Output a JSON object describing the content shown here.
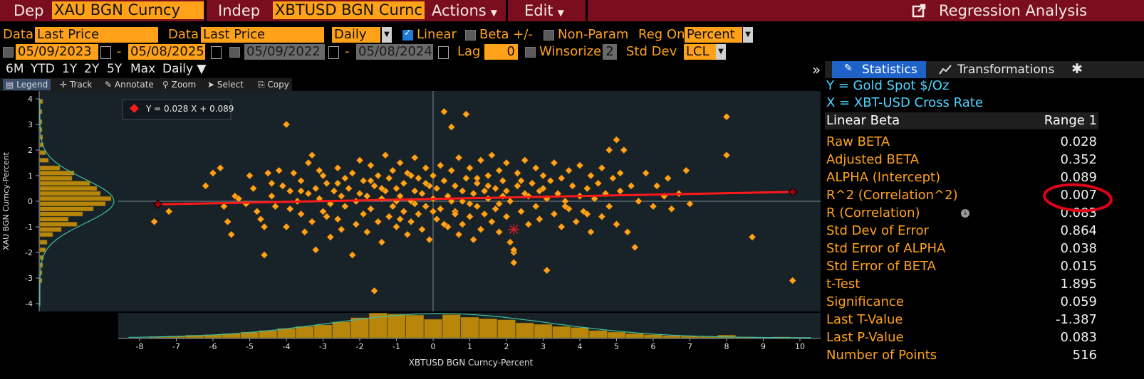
{
  "topbar": {
    "dep_label": "Dep",
    "dep_value": "XAU BGN Curncy",
    "indep_label": "Indep",
    "indep_value": "XBTUSD BGN Curnc",
    "actions_label": "Actions",
    "edit_label": "Edit",
    "app_title": "Regression Analysis",
    "colors": {
      "bar": "#7a0e1e",
      "field": "#ffa21a"
    }
  },
  "row1": {
    "data_label_1": "Data",
    "data_value_1": "Last Price",
    "data_label_2": "Data",
    "data_value_2": "Last Price",
    "frequency": "Daily",
    "linear_label": "Linear",
    "linear_checked": true,
    "beta_label": "Beta +/-",
    "beta_checked": false,
    "nonparam_label": "Non-Param",
    "nonparam_checked": false,
    "regon_label": "Reg On",
    "regon_value": "Percent"
  },
  "row2": {
    "range1_start": "05/09/2023",
    "range1_end": "05/08/2025",
    "range_sep": "-",
    "range2_start": "05/09/2022",
    "range2_end": "05/08/2024",
    "lag_label": "Lag",
    "lag_value": "0",
    "winsorize_label": "Winsorize",
    "winsorize_value": "2",
    "stddev_label": "Std Dev",
    "stddev_value": "LCL"
  },
  "periods": [
    "6M",
    "YTD",
    "1Y",
    "2Y",
    "5Y",
    "Max",
    "Daily ▼"
  ],
  "toolbar": {
    "legend": "Legend",
    "track": "Track",
    "annotate": "Annotate",
    "zoom": "Zoom",
    "select": "Select",
    "copy": "Copy"
  },
  "panel": {
    "collapse": "»",
    "tab_statistics": "Statistics",
    "tab_transformations": "Transformations",
    "y_line": "Y = Gold Spot   $/Oz",
    "x_line": "X = XBT-USD Cross Rate",
    "header_left": "Linear Beta",
    "header_right": "Range 1",
    "stats": [
      {
        "label": "Raw BETA",
        "value": "0.028"
      },
      {
        "label": "Adjusted BETA",
        "value": "0.352"
      },
      {
        "label": "ALPHA (Intercept)",
        "value": "0.089"
      },
      {
        "label": "R^2 (Correlation^2)",
        "value": "0.007"
      },
      {
        "label": "R (Correlation)",
        "value": "0.083"
      },
      {
        "label": "Std Dev of Error",
        "value": "0.864"
      },
      {
        "label": "Std Error of ALPHA",
        "value": "0.038"
      },
      {
        "label": "Std Error of BETA",
        "value": "0.015"
      },
      {
        "label": "t-Test",
        "value": "1.895"
      },
      {
        "label": "Significance",
        "value": "0.059"
      },
      {
        "label": "Last T-Value",
        "value": "-1.387"
      },
      {
        "label": "Last P-Value",
        "value": "0.083"
      },
      {
        "label": "Number of Points",
        "value": "516"
      }
    ]
  },
  "chart_data": {
    "type": "scatter",
    "equation": "Y = 0.028 X + 0.089",
    "xlabel": "XBTUSD BGN Curncy-Percent",
    "ylabel": "XAU BGN Curncy-Percent",
    "xlim": [
      -8.5,
      10.5
    ],
    "ylim": [
      -4.2,
      4.2
    ],
    "x_ticks": [
      -8,
      -7,
      -6,
      -5,
      -4,
      -3,
      -2,
      -1,
      0,
      1,
      2,
      3,
      4,
      5,
      6,
      7,
      8,
      9,
      10
    ],
    "y_ticks": [
      4,
      3,
      2,
      1,
      0,
      -1,
      -2,
      -3,
      -4
    ],
    "regression": {
      "slope": 0.028,
      "intercept": 0.089,
      "x_range": [
        -7.5,
        9.8
      ]
    },
    "last_point": {
      "x": 2.2,
      "y": -1.1
    },
    "points_count": 516,
    "colors": {
      "points": "#ffa21a",
      "line": "#ff1a1a",
      "background": "#172229",
      "hist": "#b8860b",
      "curve": "#3fbfa0",
      "annotation": "#e0001a"
    },
    "points": [
      [
        -7.6,
        -0.8
      ],
      [
        -7.2,
        -0.4
      ],
      [
        -6.2,
        0.6
      ],
      [
        -6.0,
        1.1
      ],
      [
        -5.8,
        1.3
      ],
      [
        -5.7,
        -0.2
      ],
      [
        -5.6,
        -0.8
      ],
      [
        -5.5,
        -1.3
      ],
      [
        -5.4,
        0.2
      ],
      [
        -5.3,
        0.1
      ],
      [
        -5.1,
        -0.1
      ],
      [
        -5.0,
        1.0
      ],
      [
        -4.9,
        0.5
      ],
      [
        -4.8,
        -0.4
      ],
      [
        -4.7,
        -0.7
      ],
      [
        -4.6,
        -2.1
      ],
      [
        -4.6,
        -1.0
      ],
      [
        -4.5,
        1.1
      ],
      [
        -4.4,
        0.2
      ],
      [
        -4.3,
        -0.2
      ],
      [
        -4.2,
        1.2
      ],
      [
        -4.1,
        0.6
      ],
      [
        -4.0,
        3.0
      ],
      [
        -4.0,
        -1.0
      ],
      [
        -3.9,
        -0.3
      ],
      [
        -3.9,
        0.4
      ],
      [
        -3.8,
        1.1
      ],
      [
        -3.7,
        0.0
      ],
      [
        -3.6,
        -0.5
      ],
      [
        -3.6,
        0.8
      ],
      [
        -3.5,
        -1.2
      ],
      [
        -3.4,
        0.3
      ],
      [
        -3.4,
        1.5
      ],
      [
        -3.3,
        -0.8
      ],
      [
        -3.3,
        1.8
      ],
      [
        -3.2,
        0.5
      ],
      [
        -3.2,
        -1.9
      ],
      [
        -3.1,
        0.1
      ],
      [
        -3.0,
        -0.4
      ],
      [
        -3.0,
        1.0
      ],
      [
        -2.9,
        0.7
      ],
      [
        -2.8,
        -0.1
      ],
      [
        -2.8,
        -1.4
      ],
      [
        -2.7,
        0.4
      ],
      [
        -2.6,
        1.3
      ],
      [
        -2.6,
        -0.7
      ],
      [
        -2.5,
        0.2
      ],
      [
        -2.5,
        -1.1
      ],
      [
        -2.4,
        0.9
      ],
      [
        -2.4,
        -0.2
      ],
      [
        -2.3,
        0.5
      ],
      [
        -2.2,
        -2.1
      ],
      [
        -2.2,
        1.1
      ],
      [
        -2.1,
        0.0
      ],
      [
        -2.1,
        -0.9
      ],
      [
        -2.0,
        1.6
      ],
      [
        -2.0,
        0.3
      ],
      [
        -1.9,
        -0.5
      ],
      [
        -1.9,
        0.8
      ],
      [
        -1.8,
        -1.2
      ],
      [
        -1.8,
        0.2
      ],
      [
        -1.7,
        1.4
      ],
      [
        -1.7,
        -0.3
      ],
      [
        -1.6,
        0.6
      ],
      [
        -1.6,
        -3.5
      ],
      [
        -1.5,
        -0.8
      ],
      [
        -1.5,
        1.0
      ],
      [
        -1.4,
        0.1
      ],
      [
        -1.4,
        -1.6
      ],
      [
        -1.3,
        0.4
      ],
      [
        -1.3,
        1.8
      ],
      [
        -1.2,
        -0.6
      ],
      [
        -1.2,
        0.9
      ],
      [
        -1.1,
        -0.2
      ],
      [
        -1.1,
        1.2
      ],
      [
        -1.0,
        0.5
      ],
      [
        -1.0,
        -1.0
      ],
      [
        -0.9,
        0.2
      ],
      [
        -0.9,
        1.5
      ],
      [
        -0.8,
        -0.4
      ],
      [
        -0.8,
        0.7
      ],
      [
        -0.7,
        -1.3
      ],
      [
        -0.7,
        1.1
      ],
      [
        -0.6,
        0.0
      ],
      [
        -0.6,
        -0.8
      ],
      [
        -0.5,
        1.7
      ],
      [
        -0.5,
        0.4
      ],
      [
        -0.4,
        -0.5
      ],
      [
        -0.4,
        0.9
      ],
      [
        -0.3,
        -1.1
      ],
      [
        -0.3,
        0.3
      ],
      [
        -0.2,
        1.3
      ],
      [
        -0.2,
        -0.2
      ],
      [
        -0.1,
        0.6
      ],
      [
        -0.1,
        -1.5
      ],
      [
        0.0,
        0.1
      ],
      [
        0.0,
        1.0
      ],
      [
        0.1,
        -0.7
      ],
      [
        0.1,
        0.5
      ],
      [
        0.2,
        1.4
      ],
      [
        0.2,
        -0.3
      ],
      [
        0.3,
        3.5
      ],
      [
        0.3,
        0.8
      ],
      [
        0.4,
        -1.0
      ],
      [
        0.4,
        0.2
      ],
      [
        0.5,
        2.9
      ],
      [
        0.5,
        1.2
      ],
      [
        0.6,
        -0.4
      ],
      [
        0.6,
        0.6
      ],
      [
        0.7,
        -1.3
      ],
      [
        0.7,
        1.7
      ],
      [
        0.8,
        0.0
      ],
      [
        0.8,
        -0.9
      ],
      [
        0.9,
        3.4
      ],
      [
        0.9,
        0.9
      ],
      [
        1.0,
        -0.6
      ],
      [
        1.0,
        1.3
      ],
      [
        1.1,
        0.3
      ],
      [
        1.1,
        -1.5
      ],
      [
        1.2,
        0.7
      ],
      [
        1.2,
        -0.2
      ],
      [
        1.3,
        1.6
      ],
      [
        1.3,
        -1.1
      ],
      [
        1.4,
        0.4
      ],
      [
        1.4,
        -0.5
      ],
      [
        1.5,
        1.0
      ],
      [
        1.5,
        0.1
      ],
      [
        1.6,
        -0.8
      ],
      [
        1.6,
        1.8
      ],
      [
        1.7,
        0.5
      ],
      [
        1.7,
        -0.3
      ],
      [
        1.8,
        1.2
      ],
      [
        1.8,
        -1.2
      ],
      [
        1.9,
        0.2
      ],
      [
        1.9,
        0.8
      ],
      [
        2.0,
        -0.6
      ],
      [
        2.0,
        1.5
      ],
      [
        2.1,
        0.0
      ],
      [
        2.1,
        -1.6
      ],
      [
        2.2,
        -2.0
      ],
      [
        2.2,
        -2.4
      ],
      [
        2.2,
        -1.9
      ],
      [
        2.3,
        0.6
      ],
      [
        2.3,
        1.1
      ],
      [
        2.4,
        -0.4
      ],
      [
        2.5,
        0.3
      ],
      [
        2.5,
        1.6
      ],
      [
        2.6,
        -0.9
      ],
      [
        2.7,
        0.7
      ],
      [
        2.8,
        -0.2
      ],
      [
        2.8,
        1.3
      ],
      [
        2.9,
        0.4
      ],
      [
        2.9,
        -0.7
      ],
      [
        3.0,
        1.0
      ],
      [
        3.1,
        -2.7
      ],
      [
        3.1,
        0.1
      ],
      [
        3.2,
        0.8
      ],
      [
        3.3,
        -0.5
      ],
      [
        3.3,
        1.5
      ],
      [
        3.4,
        0.3
      ],
      [
        3.5,
        -1.0
      ],
      [
        3.5,
        0.9
      ],
      [
        3.6,
        0.0
      ],
      [
        3.7,
        1.2
      ],
      [
        3.7,
        -0.3
      ],
      [
        3.8,
        0.6
      ],
      [
        3.9,
        -0.8
      ],
      [
        4.0,
        0.2
      ],
      [
        4.0,
        1.4
      ],
      [
        4.1,
        -0.4
      ],
      [
        4.2,
        0.5
      ],
      [
        4.3,
        1.0
      ],
      [
        4.3,
        -1.2
      ],
      [
        4.4,
        0.1
      ],
      [
        4.5,
        0.7
      ],
      [
        4.6,
        -0.6
      ],
      [
        4.6,
        1.3
      ],
      [
        4.7,
        0.3
      ],
      [
        4.8,
        2.0
      ],
      [
        4.8,
        -0.2
      ],
      [
        4.9,
        0.9
      ],
      [
        5.0,
        2.4
      ],
      [
        5.0,
        -0.9
      ],
      [
        5.1,
        1.1
      ],
      [
        5.1,
        0.4
      ],
      [
        5.2,
        2.0
      ],
      [
        5.3,
        -1.2
      ],
      [
        5.4,
        0.6
      ],
      [
        5.5,
        -1.8
      ],
      [
        5.6,
        0.0
      ],
      [
        5.8,
        1.1
      ],
      [
        6.0,
        -0.2
      ],
      [
        6.1,
        0.6
      ],
      [
        6.3,
        0.2
      ],
      [
        6.4,
        0.9
      ],
      [
        6.5,
        -0.3
      ],
      [
        6.7,
        0.3
      ],
      [
        6.9,
        1.2
      ],
      [
        7.0,
        -0.1
      ],
      [
        8.0,
        3.3
      ],
      [
        8.0,
        1.8
      ],
      [
        8.7,
        -1.4
      ],
      [
        9.8,
        -3.1
      ],
      [
        -1.0,
        0.0
      ],
      [
        -0.5,
        -0.1
      ],
      [
        0.5,
        0.0
      ],
      [
        1.0,
        -0.1
      ],
      [
        1.5,
        0.6
      ],
      [
        -2.6,
        0.7
      ],
      [
        -3.6,
        0.4
      ],
      [
        -4.4,
        0.7
      ],
      [
        2.4,
        0.8
      ],
      [
        3.0,
        0.5
      ],
      [
        3.6,
        -0.2
      ],
      [
        4.2,
        -0.5
      ],
      [
        -1.4,
        0.5
      ],
      [
        0.0,
        -0.4
      ],
      [
        0.8,
        0.4
      ],
      [
        -0.2,
        0.7
      ],
      [
        1.8,
        -0.1
      ],
      [
        2.6,
        0.2
      ],
      [
        -2.9,
        -0.6
      ],
      [
        -0.9,
        -0.7
      ],
      [
        0.3,
        -0.9
      ],
      [
        1.2,
        0.9
      ],
      [
        -1.7,
        0.8
      ],
      [
        -3.1,
        1.2
      ],
      [
        2.0,
        0.4
      ],
      [
        -0.6,
        1.0
      ],
      [
        0.6,
        -0.5
      ]
    ],
    "y_hist": [
      {
        "y": 3.9,
        "w": 4
      },
      {
        "y": 3.5,
        "w": 3
      },
      {
        "y": 3.1,
        "w": 3
      },
      {
        "y": 2.8,
        "w": 3
      },
      {
        "y": 2.5,
        "w": 4
      },
      {
        "y": 2.2,
        "w": 5
      },
      {
        "y": 1.9,
        "w": 8
      },
      {
        "y": 1.6,
        "w": 12
      },
      {
        "y": 1.3,
        "w": 28
      },
      {
        "y": 1.1,
        "w": 48
      },
      {
        "y": 0.9,
        "w": 45
      },
      {
        "y": 0.7,
        "w": 70
      },
      {
        "y": 0.5,
        "w": 80
      },
      {
        "y": 0.3,
        "w": 85
      },
      {
        "y": 0.1,
        "w": 100
      },
      {
        "y": -0.1,
        "w": 92
      },
      {
        "y": -0.3,
        "w": 75
      },
      {
        "y": -0.5,
        "w": 60
      },
      {
        "y": -0.7,
        "w": 40
      },
      {
        "y": -0.9,
        "w": 52
      },
      {
        "y": -1.1,
        "w": 30
      },
      {
        "y": -1.3,
        "w": 18
      },
      {
        "y": -1.6,
        "w": 10
      },
      {
        "y": -1.9,
        "w": 8
      },
      {
        "y": -2.2,
        "w": 5
      },
      {
        "y": -2.5,
        "w": 4
      },
      {
        "y": -2.8,
        "w": 3
      },
      {
        "y": -3.1,
        "w": 3
      }
    ],
    "x_hist": [
      {
        "x": -7.5,
        "h": 4
      },
      {
        "x": -7.0,
        "h": 6
      },
      {
        "x": -6.5,
        "h": 10
      },
      {
        "x": -6.0,
        "h": 12
      },
      {
        "x": -5.5,
        "h": 16
      },
      {
        "x": -5.0,
        "h": 22
      },
      {
        "x": -4.5,
        "h": 28
      },
      {
        "x": -4.0,
        "h": 36
      },
      {
        "x": -3.5,
        "h": 44
      },
      {
        "x": -3.0,
        "h": 50
      },
      {
        "x": -2.5,
        "h": 62
      },
      {
        "x": -2.0,
        "h": 78
      },
      {
        "x": -1.5,
        "h": 96
      },
      {
        "x": -1.0,
        "h": 92
      },
      {
        "x": -0.5,
        "h": 88
      },
      {
        "x": 0.0,
        "h": 72
      },
      {
        "x": 0.5,
        "h": 90
      },
      {
        "x": 1.0,
        "h": 80
      },
      {
        "x": 1.5,
        "h": 74
      },
      {
        "x": 2.0,
        "h": 70
      },
      {
        "x": 2.5,
        "h": 58
      },
      {
        "x": 3.0,
        "h": 52
      },
      {
        "x": 3.5,
        "h": 44
      },
      {
        "x": 4.0,
        "h": 40
      },
      {
        "x": 4.5,
        "h": 28
      },
      {
        "x": 5.0,
        "h": 22
      },
      {
        "x": 5.5,
        "h": 16
      },
      {
        "x": 6.0,
        "h": 12
      },
      {
        "x": 6.5,
        "h": 8
      },
      {
        "x": 7.0,
        "h": 6
      },
      {
        "x": 7.5,
        "h": 4
      },
      {
        "x": 8.0,
        "h": 10
      },
      {
        "x": 8.5,
        "h": 3
      },
      {
        "x": 9.5,
        "h": 3
      }
    ]
  }
}
